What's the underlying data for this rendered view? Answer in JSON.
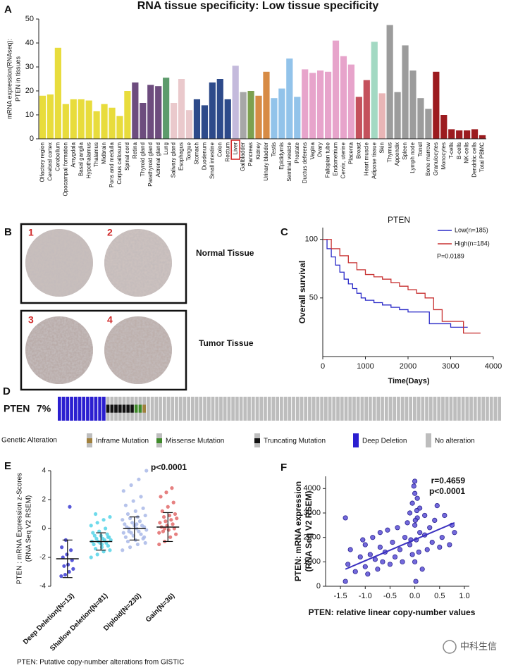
{
  "panel_labels": [
    "A",
    "B",
    "C",
    "D",
    "E",
    "F"
  ],
  "panel_b": {
    "images": [
      "1",
      "2",
      "3",
      "4"
    ],
    "normal": "Normal Tissue",
    "tumor": "Tumor Tissue"
  },
  "watermark": "中科生信",
  "chart_data": [
    {
      "type": "bar",
      "title": "RNA tissue specificity: Low tissue specificity",
      "ylabel": [
        "mRNA expression(RNAseq):",
        "PTEN in tissues"
      ],
      "categories": [
        "Olfactory region",
        "Cerebral cortex",
        "Cerebellum",
        "Opocampal formation",
        "Amygdala",
        "Basal ganglia",
        "Hypothalamus",
        "Thalamus",
        "Midbrain",
        "Pons and medulla",
        "Corpus callosum",
        "Spinal cord",
        "Retina",
        "Thyroid gland",
        "Parathyroid gland",
        "Adrenal gland",
        "Lung",
        "Salivary gland",
        "Esophagus",
        "Tongue",
        "Stomach",
        "Duodenum",
        "Small intestine",
        "Colon",
        "Rectum",
        "Liver",
        "Gallbladder",
        "Pancreas",
        "Kidney",
        "Urinary bladder",
        "Testis",
        "Epididymis",
        "Seminal vesicle",
        "Prostate",
        "Ductus deferens",
        "Vagina",
        "Ovary",
        "Fallopian tube",
        "Endometrium",
        "Cervix, uterine",
        "Placenta",
        "Breast",
        "Heart muscle",
        "Adipose tissue",
        "Skin",
        "Thymus",
        "Appendix",
        "Spleen",
        "Lymph node",
        "Tonsil",
        "Bone marrow",
        "Granulocytes",
        "Monocytes",
        "T-cells",
        "B-cells",
        "NK-cells",
        "Dendritic cells",
        "Total PBMC"
      ],
      "values": [
        18,
        18.5,
        38,
        14.5,
        16.5,
        16.5,
        16,
        11.5,
        14.5,
        13,
        9.5,
        20,
        23.5,
        15,
        22.5,
        22,
        25.5,
        15,
        25,
        12,
        16.5,
        14,
        23.5,
        25,
        16.5,
        30.5,
        19.5,
        20,
        18,
        28,
        17,
        21,
        33.5,
        17.5,
        29,
        27.5,
        28.5,
        28,
        41,
        34.5,
        31,
        17.5,
        24.5,
        40.5,
        19,
        47.5,
        19.5,
        39,
        28.5,
        17,
        12.5,
        28,
        10,
        4,
        3.5,
        3.5,
        4,
        1.5
      ],
      "colors": [
        "#e8dc3c",
        "#e8dc3c",
        "#e8dc3c",
        "#e8dc3c",
        "#e8dc3c",
        "#e8dc3c",
        "#e8dc3c",
        "#e8dc3c",
        "#e8dc3c",
        "#e8dc3c",
        "#e8dc3c",
        "#e8dc3c",
        "#6d4c7e",
        "#6d4c7e",
        "#6d4c7e",
        "#6d4c7e",
        "#5d9b6c",
        "#eac9cc",
        "#eac9cc",
        "#eac9cc",
        "#2d4a8a",
        "#2d4a8a",
        "#2d4a8a",
        "#2d4a8a",
        "#2d4a8a",
        "#c4badc",
        "#a7a7a7",
        "#7da04f",
        "#d78b45",
        "#d78b45",
        "#92c3ea",
        "#92c3ea",
        "#92c3ea",
        "#92c3ea",
        "#e7a4cb",
        "#e7a4cb",
        "#e7a4cb",
        "#e7a4cb",
        "#e7a4cb",
        "#e7a4cb",
        "#e7a4cb",
        "#c4515c",
        "#c4515c",
        "#a3d9c3",
        "#e9b5b6",
        "#9c9c9c",
        "#9c9c9c",
        "#9c9c9c",
        "#9c9c9c",
        "#9c9c9c",
        "#9c9c9c",
        "#9c1b1f",
        "#9c1b1f",
        "#9c1b1f",
        "#9c1b1f",
        "#9c1b1f",
        "#9c1b1f",
        "#9c1b1f"
      ],
      "ylim": [
        0,
        50
      ],
      "yticks": [
        0,
        10,
        20,
        30,
        40,
        50
      ],
      "highlight": "Liver"
    },
    {
      "type": "survival",
      "title": "PTEN",
      "ylabel": "Overall survival",
      "xlabel": "Time(Days)",
      "xlim": [
        0,
        4000
      ],
      "xticks": [
        0,
        1000,
        2000,
        3000,
        4000
      ],
      "ylim": [
        0,
        110
      ],
      "yticks": [
        50,
        100
      ],
      "annotation": "P=0.0189",
      "series": [
        {
          "name": "Low(n=185)",
          "color": "#2b2bc8",
          "x": [
            0,
            100,
            200,
            300,
            400,
            500,
            600,
            700,
            800,
            900,
            1000,
            1200,
            1400,
            1600,
            1800,
            2000,
            2500,
            3000,
            3400
          ],
          "values": [
            100,
            92,
            85,
            78,
            72,
            66,
            62,
            58,
            54,
            50,
            48,
            46,
            44,
            42,
            40,
            38,
            28,
            25,
            25
          ]
        },
        {
          "name": "High(n=184)",
          "color": "#c83232",
          "x": [
            0,
            200,
            400,
            600,
            800,
            1000,
            1200,
            1400,
            1600,
            1800,
            2000,
            2200,
            2400,
            2600,
            2800,
            3300,
            3700
          ],
          "values": [
            100,
            92,
            86,
            80,
            74,
            70,
            68,
            66,
            63,
            60,
            57,
            54,
            50,
            40,
            30,
            20,
            20
          ]
        }
      ]
    },
    {
      "type": "oncoprint",
      "gene": "PTEN",
      "frequency_label": "7%",
      "legend_title": "Genetic Alteration",
      "series": [
        {
          "name": "Inframe Mutation",
          "color": "#a0803c",
          "inset": true,
          "count": 1
        },
        {
          "name": "Missense Mutation",
          "color": "#3f8a2a",
          "inset": true,
          "count": 2
        },
        {
          "name": "Truncating Mutation",
          "color": "#111111",
          "inset": true,
          "count": 7
        },
        {
          "name": "Deep Deletion",
          "color": "#2b1fd0",
          "inset": false,
          "count": 12
        },
        {
          "name": "No alteration",
          "color": "#bdbdbd",
          "inset": false,
          "count": 88
        }
      ]
    },
    {
      "type": "dot",
      "ylabel": [
        "PTEN : mRNA Expression z-Scores",
        "(RNA Seq V2 RSEM)"
      ],
      "xlabel": "PTEN: Putative copy-number alterations from GISTIC",
      "annotation": "p<0.0001",
      "ylim": [
        -4,
        4
      ],
      "yticks": [
        -4,
        -2,
        0,
        2,
        4
      ],
      "series": [
        {
          "name": "Deep Deletion(N=13)",
          "color": "#3b3bd1",
          "mean": -2.1,
          "sd": 1.3,
          "values": [
            -3.3,
            -3.2,
            -3.0,
            -2.8,
            -2.6,
            -2.5,
            -2.2,
            -2.0,
            -1.8,
            -1.5,
            -1.3,
            -0.8,
            1.5
          ]
        },
        {
          "name": "Shallow Deletion(N=81)",
          "color": "#55d3e8",
          "mean": -0.9,
          "sd": 0.6,
          "values": [
            -2.0,
            -1.8,
            -1.6,
            -1.5,
            -1.4,
            -1.3,
            -1.2,
            -1.1,
            -1.0,
            -1.0,
            -0.9,
            -0.9,
            -0.8,
            -0.8,
            -0.7,
            -0.7,
            -0.6,
            -0.5,
            -0.5,
            -0.4,
            -0.3,
            -0.2,
            0,
            0.2,
            0.4,
            0.6,
            0.8,
            1.0,
            -1.1,
            -0.6
          ]
        },
        {
          "name": "Diploid(N=230)",
          "color": "#a9b8e8",
          "mean": 0,
          "sd": 0.8,
          "values": [
            -1.5,
            -1.3,
            -1.1,
            -1.0,
            -0.9,
            -0.8,
            -0.7,
            -0.6,
            -0.5,
            -0.4,
            -0.3,
            -0.3,
            -0.2,
            -0.1,
            0,
            0,
            0.1,
            0.1,
            0.2,
            0.2,
            0.3,
            0.4,
            0.5,
            0.6,
            0.7,
            0.8,
            0.9,
            1.0,
            1.2,
            1.4,
            1.6,
            1.9,
            2.2,
            2.6,
            3.0,
            3.4,
            4.0,
            -0.2,
            0.3,
            -0.6
          ]
        },
        {
          "name": "Gain(N=36)",
          "color": "#e26a6a",
          "mean": 0.1,
          "sd": 1.0,
          "values": [
            -1.1,
            -0.9,
            -0.6,
            -0.4,
            -0.2,
            -0.1,
            0,
            0.1,
            0.2,
            0.3,
            0.4,
            0.5,
            0.6,
            0.7,
            0.8,
            0.9,
            1.0,
            1.2,
            1.5,
            1.8,
            2.2,
            2.5,
            2.8,
            -0.3,
            0.0
          ]
        }
      ]
    },
    {
      "type": "scatter",
      "ylabel": [
        "PTEN: mRNA expression",
        "(RNA Seq V2 RSEM)"
      ],
      "xlabel": "PTEN: relative linear copy-number values",
      "annotations": [
        "r=0.4659",
        "p<0.0001"
      ],
      "xlim": [
        -1.8,
        1.1
      ],
      "ylim": [
        0,
        4500
      ],
      "xticks": [
        -1.5,
        {
          "value": -1.0,
          "label": "-1.0"
        },
        -0.5,
        {
          "value": 0.0,
          "label": "0.0"
        },
        0.5,
        {
          "value": 1.0,
          "label": "1.0"
        }
      ],
      "yticks": [
        0,
        1000,
        2000,
        3000,
        4000
      ],
      "color": "#5a4fd6",
      "x": [
        -1.4,
        -1.4,
        -1.35,
        -1.3,
        -1.2,
        -1.1,
        -1.05,
        -1.0,
        -1.0,
        -0.95,
        -0.9,
        -0.85,
        -0.8,
        -0.75,
        -0.7,
        -0.7,
        -0.65,
        -0.6,
        -0.55,
        -0.5,
        -0.45,
        -0.4,
        -0.35,
        -0.3,
        -0.25,
        -0.2,
        -0.15,
        -0.1,
        -0.1,
        -0.05,
        -0.05,
        0,
        0,
        0,
        0,
        0.02,
        0.03,
        0.05,
        0.05,
        0.08,
        0.1,
        0.1,
        0.15,
        0.2,
        0.2,
        0.25,
        0.3,
        0.35,
        0.4,
        0.45,
        0.5,
        0.55,
        0.6,
        0.7,
        0.75,
        0.8,
        -0.02,
        0.01,
        0.04,
        -0.08
      ],
      "values": [
        200,
        2800,
        900,
        1500,
        600,
        1200,
        1900,
        800,
        1700,
        500,
        1300,
        2000,
        1100,
        700,
        1600,
        2200,
        1000,
        1400,
        2300,
        900,
        1800,
        1200,
        2400,
        1500,
        1000,
        2000,
        2600,
        1700,
        3000,
        1300,
        3400,
        2500,
        3800,
        4300,
        1000,
        200,
        1900,
        3600,
        2800,
        1400,
        2200,
        3200,
        700,
        2100,
        2900,
        1500,
        2400,
        1800,
        2700,
        3300,
        1600,
        2000,
        2900,
        1700,
        2500,
        2200,
        4100,
        2700,
        3100,
        1900
      ],
      "trend": {
        "x": [
          -1.4,
          0.8
        ],
        "values": [
          700,
          2600
        ]
      }
    }
  ]
}
